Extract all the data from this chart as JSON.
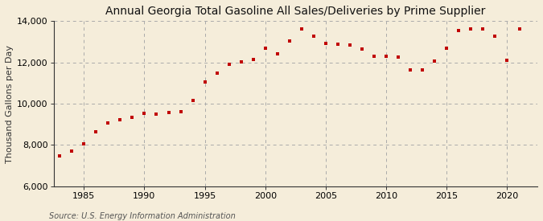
{
  "title": "Annual Georgia Total Gasoline All Sales/Deliveries by Prime Supplier",
  "ylabel": "Thousand Gallons per Day",
  "source": "Source: U.S. Energy Information Administration",
  "background_color": "#f5edda",
  "marker_color": "#c00000",
  "grid_color": "#aaaaaa",
  "years": [
    1983,
    1984,
    1985,
    1986,
    1987,
    1988,
    1989,
    1990,
    1991,
    1992,
    1993,
    1994,
    1995,
    1996,
    1997,
    1998,
    1999,
    2000,
    2001,
    2002,
    2003,
    2004,
    2005,
    2006,
    2007,
    2008,
    2009,
    2010,
    2011,
    2012,
    2013,
    2014,
    2015,
    2016,
    2017,
    2018,
    2019,
    2020,
    2021
  ],
  "values": [
    7480,
    7720,
    8040,
    8630,
    9050,
    9230,
    9330,
    9530,
    9480,
    9590,
    9600,
    10150,
    11050,
    11480,
    11910,
    12010,
    12160,
    12680,
    12430,
    13050,
    13640,
    13260,
    12910,
    12870,
    12830,
    12650,
    12310,
    12300,
    12260,
    11620,
    11640,
    12050,
    12670,
    13530,
    13630,
    13630,
    13270,
    12110,
    13620
  ],
  "ylim": [
    6000,
    14000
  ],
  "yticks": [
    6000,
    8000,
    10000,
    12000,
    14000
  ],
  "xticks": [
    1985,
    1990,
    1995,
    2000,
    2005,
    2010,
    2015,
    2020
  ],
  "xlim": [
    1982.5,
    2022.5
  ],
  "title_fontsize": 10,
  "label_fontsize": 8,
  "tick_fontsize": 8,
  "source_fontsize": 7
}
